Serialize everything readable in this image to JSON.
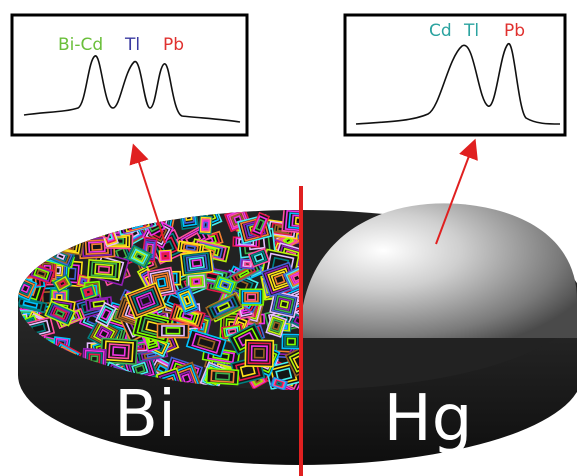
{
  "left_panel": {
    "peaks": [
      "Bi-Cd",
      "Tl",
      "Pb"
    ],
    "peak_colors": [
      "#6abf3a",
      "#3a3aa0",
      "#e0312f"
    ],
    "electrode_label": "Bi",
    "electrode_material": "bismuth"
  },
  "right_panel": {
    "peaks": [
      "Cd",
      "Tl",
      "Pb"
    ],
    "peak_colors": [
      "#2ba3a0",
      "#2ba3a0",
      "#e0312f"
    ],
    "electrode_label": "Hg",
    "electrode_material": "mercury"
  },
  "colors": {
    "divider": "#e02020",
    "arrow": "#e02020",
    "disk": "#1a1a1a",
    "frame": "#000000"
  }
}
